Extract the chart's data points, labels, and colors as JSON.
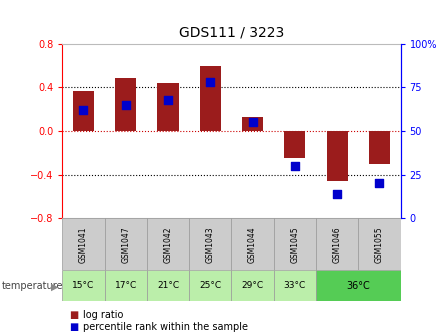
{
  "title": "GDS111 / 3223",
  "samples": [
    "GSM1041",
    "GSM1047",
    "GSM1042",
    "GSM1043",
    "GSM1044",
    "GSM1045",
    "GSM1046",
    "GSM1055"
  ],
  "temperatures": [
    "15°C",
    "17°C",
    "21°C",
    "25°C",
    "29°C",
    "33°C",
    "36°C"
  ],
  "log_ratio": [
    0.37,
    0.49,
    0.44,
    0.6,
    0.13,
    -0.25,
    -0.46,
    -0.3
  ],
  "percentile": [
    62,
    65,
    68,
    78,
    55,
    30,
    14,
    20
  ],
  "ylim_left": [
    -0.8,
    0.8
  ],
  "ylim_right": [
    0,
    100
  ],
  "yticks_left": [
    -0.8,
    -0.4,
    0,
    0.4,
    0.8
  ],
  "yticks_right": [
    0,
    25,
    50,
    75,
    100
  ],
  "bar_color": "#9b1c1c",
  "dot_color": "#0000cc",
  "grid_color": "#000000",
  "zero_line_color": "#cc0000",
  "bg_color": "#ffffff",
  "plot_bg": "#ffffff",
  "temp_bg_light": "#aaddaa",
  "temp_bg_normal": "#bbeeaa",
  "temp_bg_highlight": "#55cc55",
  "sample_bg": "#cccccc",
  "temp_label": "temperature",
  "legend_bar": "log ratio",
  "legend_dot": "percentile rank within the sample"
}
